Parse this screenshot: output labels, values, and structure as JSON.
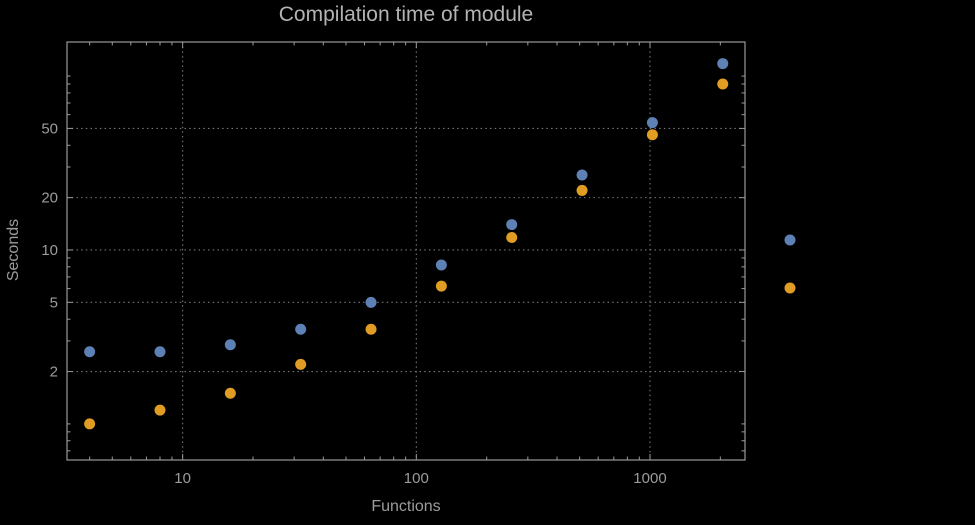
{
  "chart_data": {
    "type": "scatter",
    "title": "Compilation time of module",
    "xlabel": "Functions",
    "ylabel": "Seconds",
    "x_scale": "log",
    "y_scale": "log",
    "x": [
      4,
      8,
      16,
      32,
      64,
      128,
      256,
      512,
      1024,
      2048
    ],
    "series": [
      {
        "name": "blue-series",
        "color": "#5E81B5",
        "values": [
          2.6,
          2.6,
          2.85,
          3.5,
          5.0,
          8.2,
          14,
          27,
          54,
          118
        ]
      },
      {
        "name": "orange-series",
        "color": "#E19C24",
        "values": [
          1.0,
          1.2,
          1.5,
          2.2,
          3.5,
          6.2,
          11.8,
          22,
          46,
          90
        ]
      }
    ],
    "x_ticks": [
      10,
      100,
      1000
    ],
    "x_tick_labels": [
      "10",
      "100",
      "1000"
    ],
    "y_ticks": [
      2,
      5,
      10,
      20,
      50
    ],
    "y_tick_labels": [
      "2",
      "5",
      "10",
      "20",
      "50"
    ],
    "xlim": [
      3.2,
      2550
    ],
    "ylim": [
      0.62,
      157
    ],
    "grid": "dotted",
    "legend_position": "right",
    "legend": "unlabeled color markers outside right frame"
  },
  "colors": {
    "background": "#000000",
    "frame": "#9a9a9a",
    "grid": "#767676",
    "tick_text": "#9c9c9c",
    "title_text": "#b3b3b3",
    "point_blue": "#5E81B5",
    "point_orange": "#E19C24"
  }
}
